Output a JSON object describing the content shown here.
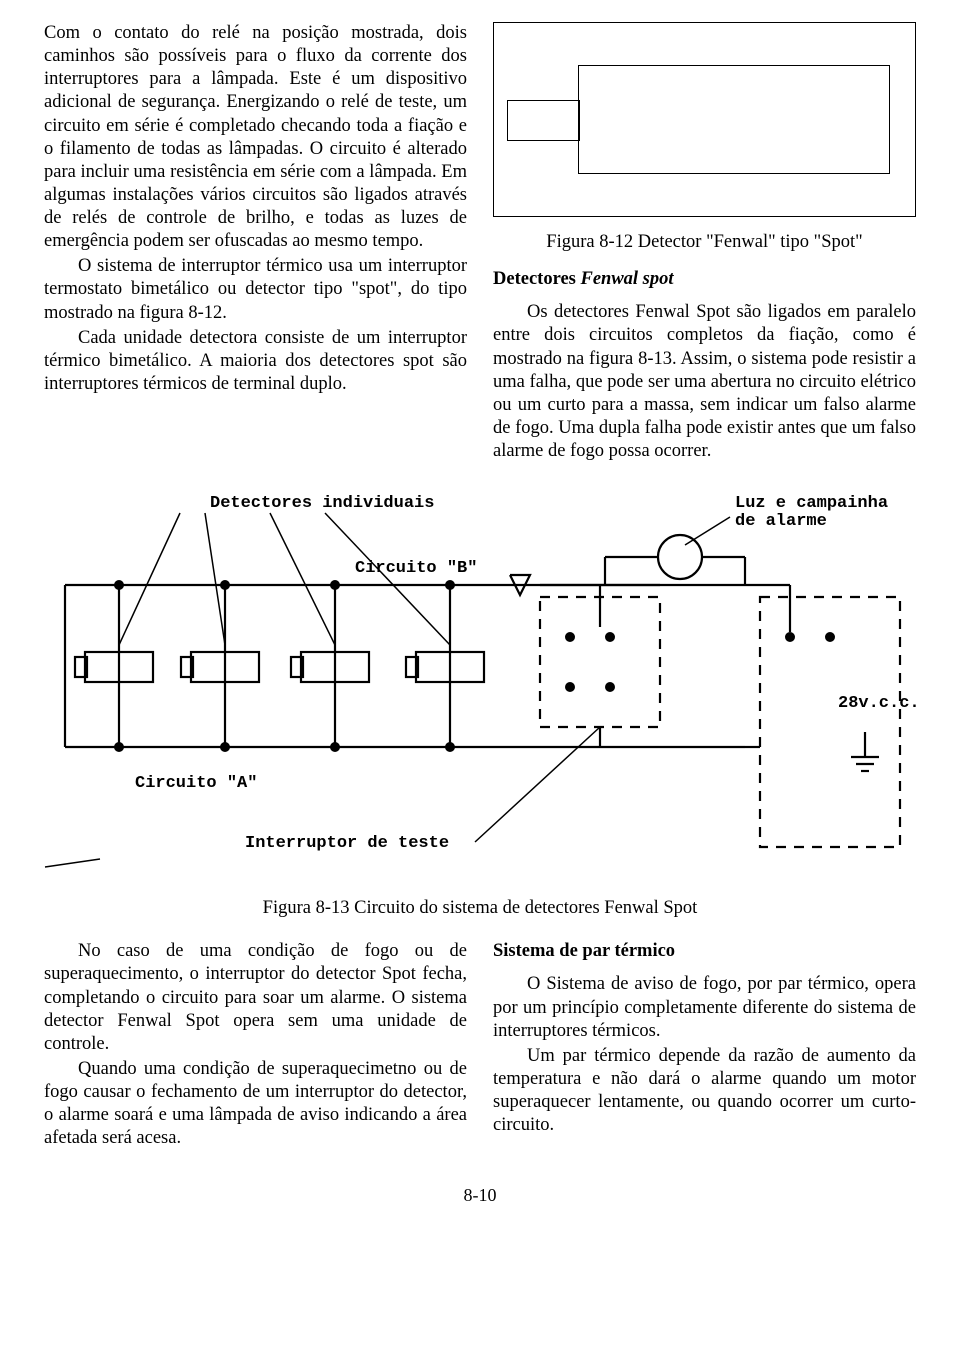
{
  "page": {
    "number": "8-10"
  },
  "top": {
    "col1": {
      "p1": "Com o contato do relé na posição mostrada, dois caminhos são possíveis para o fluxo da corrente dos interruptores para a lâmpada. Este é um dispositivo adicional de segurança. Energizando o relé de teste, um circuito em série é completado checando toda a fiação e o filamento de todas as lâmpadas. O circuito é alterado para incluir uma resistência em série com a lâmpada. Em algumas instalações vários circuitos são ligados através de relés de controle de brilho, e todas as luzes de emergência podem ser ofuscadas ao mesmo tempo.",
      "p2": "O sistema de interruptor térmico usa um interruptor termostato bimetálico ou detector tipo \"spot\", do tipo mostrado na figura 8-12.",
      "p3": "Cada unidade detectora consiste de um interruptor térmico bimetálico. A maioria dos detectores spot são interruptores térmicos de terminal duplo."
    },
    "col2": {
      "fig12_caption": "Figura 8-12 Detector \"Fenwal\" tipo \"Spot\"",
      "heading": "Detectores Fenwal spot",
      "p1": "Os detectores Fenwal Spot são ligados em paralelo entre dois circuitos completos da fiação, como é mostrado na figura 8-13. Assim, o sistema pode resistir a uma falha, que pode ser uma abertura no circuito elétrico ou um curto para a massa, sem indicar um falso alarme de fogo. Uma dupla falha pode existir antes que um falso alarme de fogo possa ocorrer."
    }
  },
  "fig13": {
    "caption": "Figura 8-13 Circuito do sistema de detectores Fenwal Spot",
    "labels": {
      "detectores": "Detectores individuais",
      "luz": "Luz e campainha\nde alarme",
      "circuitoB": "Circuito \"B\"",
      "circuitoA": "Circuito \"A\"",
      "interruptor": "Interruptor de teste",
      "voltage": "28v.c.c."
    }
  },
  "bottom": {
    "col1": {
      "p1": "No caso de uma condição de fogo ou de superaquecimento, o interruptor do detector Spot fecha, completando o circuito para soar um alarme. O sistema detector Fenwal Spot opera sem uma unidade de controle.",
      "p2": "Quando uma condição de superaquecimetno ou de fogo causar o fechamento de um interruptor do detector, o alarme soará e uma lâmpada de aviso indicando a área afetada será acesa."
    },
    "col2": {
      "heading": "Sistema de par térmico",
      "p1": "O Sistema de aviso de fogo, por par térmico, opera por um princípio completamente diferente do sistema de interruptores térmicos.",
      "p2": "Um par térmico depende da razão de aumento da temperatura e não dará o alarme quando um motor superaquecer lentamente, ou quando ocorrer um curto-circuito."
    }
  }
}
